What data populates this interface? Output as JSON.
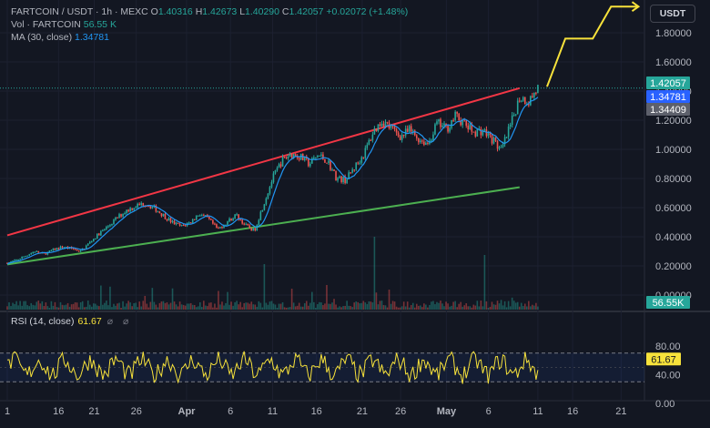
{
  "header": {
    "symbol": "FARTCOIN / USDT · 1h · MEXC",
    "open_label": "O",
    "open": "1.40316",
    "high_label": "H",
    "high": "1.42673",
    "low_label": "L",
    "low": "1.40290",
    "close_label": "C",
    "close": "1.42057",
    "change": "+0.02072 (+1.48%)",
    "vol_label": "Vol · FARTCOIN",
    "vol_value": "56.55 K",
    "ma_label": "MA (30, close)",
    "ma_value": "1.34781"
  },
  "currency_button": "USDT",
  "colors": {
    "background": "#131722",
    "up": "#26a69a",
    "down": "#ef5350",
    "ma": "#2196f3",
    "rsi": "#f7e23b",
    "upper_trendline": "#f23645",
    "lower_trendline": "#4caf50",
    "projection": "#f7e23b",
    "price_tag": "#26a69a",
    "ma_tag": "#2962ff",
    "last_tag": "#5d606b"
  },
  "price_axis": {
    "ticks": [
      "1.80000",
      "1.60000",
      "1.40000",
      "1.20000",
      "1.00000",
      "0.80000",
      "0.60000",
      "0.40000",
      "0.20000",
      "0.00000"
    ],
    "tags": [
      {
        "label": "1.42057",
        "value": 1.42057,
        "color": "#26a69a"
      },
      {
        "label": "1.34781",
        "value": 1.34781,
        "color": "#2962ff"
      },
      {
        "label": "1.34409",
        "value": 1.34409,
        "color": "#5d606b"
      }
    ],
    "volume_tag": "56.55K"
  },
  "rsi": {
    "label": "RSI (14, close)",
    "value": "61.67",
    "icons": "⌀ ⌀",
    "ticks": [
      "80.00",
      "40.00",
      "0.00"
    ],
    "band_upper": 70,
    "band_lower": 30
  },
  "time_axis": {
    "ticks": [
      "1",
      "16",
      "21",
      "26",
      "Apr",
      "6",
      "11",
      "16",
      "21",
      "26",
      "May",
      "6",
      "11",
      "16",
      "21"
    ]
  },
  "chart_data": {
    "type": "line",
    "title": "FARTCOIN / USDT · 1h · MEXC",
    "y_range": [
      -0.1,
      2.0
    ],
    "x_range_days": [
      0,
      58
    ],
    "price_path": [
      [
        0,
        0.22
      ],
      [
        1,
        0.24
      ],
      [
        2,
        0.27
      ],
      [
        3,
        0.3
      ],
      [
        4,
        0.28
      ],
      [
        5,
        0.31
      ],
      [
        6,
        0.33
      ],
      [
        7,
        0.32
      ],
      [
        8,
        0.3
      ],
      [
        9,
        0.36
      ],
      [
        10,
        0.42
      ],
      [
        11,
        0.47
      ],
      [
        12,
        0.53
      ],
      [
        13,
        0.58
      ],
      [
        14,
        0.61
      ],
      [
        15,
        0.63
      ],
      [
        16,
        0.6
      ],
      [
        17,
        0.55
      ],
      [
        18,
        0.5
      ],
      [
        19,
        0.47
      ],
      [
        20,
        0.5
      ],
      [
        21,
        0.56
      ],
      [
        22,
        0.52
      ],
      [
        23,
        0.45
      ],
      [
        24,
        0.5
      ],
      [
        25,
        0.55
      ],
      [
        26,
        0.48
      ],
      [
        27,
        0.44
      ],
      [
        28,
        0.62
      ],
      [
        29,
        0.8
      ],
      [
        30,
        0.92
      ],
      [
        31,
        0.97
      ],
      [
        32,
        0.95
      ],
      [
        33,
        0.9
      ],
      [
        34,
        0.96
      ],
      [
        35,
        0.92
      ],
      [
        36,
        0.8
      ],
      [
        37,
        0.79
      ],
      [
        38,
        0.88
      ],
      [
        39,
        0.97
      ],
      [
        40,
        1.12
      ],
      [
        41,
        1.2
      ],
      [
        42,
        1.14
      ],
      [
        43,
        1.09
      ],
      [
        44,
        1.13
      ],
      [
        45,
        1.07
      ],
      [
        46,
        1.04
      ],
      [
        47,
        1.18
      ],
      [
        48,
        1.14
      ],
      [
        49,
        1.23
      ],
      [
        50,
        1.17
      ],
      [
        51,
        1.12
      ],
      [
        52,
        1.13
      ],
      [
        53,
        1.07
      ],
      [
        54,
        0.99
      ],
      [
        55,
        1.16
      ],
      [
        56,
        1.36
      ],
      [
        57,
        1.33
      ],
      [
        58,
        1.42
      ]
    ],
    "upper_trendline": [
      [
        0,
        0.41
      ],
      [
        56,
        1.42
      ]
    ],
    "lower_trendline": [
      [
        0,
        0.21
      ],
      [
        56,
        0.74
      ]
    ],
    "projection": [
      [
        59,
        1.43
      ],
      [
        61,
        1.76
      ],
      [
        64,
        1.76
      ],
      [
        66,
        1.98
      ],
      [
        69,
        1.98
      ]
    ],
    "rsi_range": [
      0,
      100
    ]
  }
}
